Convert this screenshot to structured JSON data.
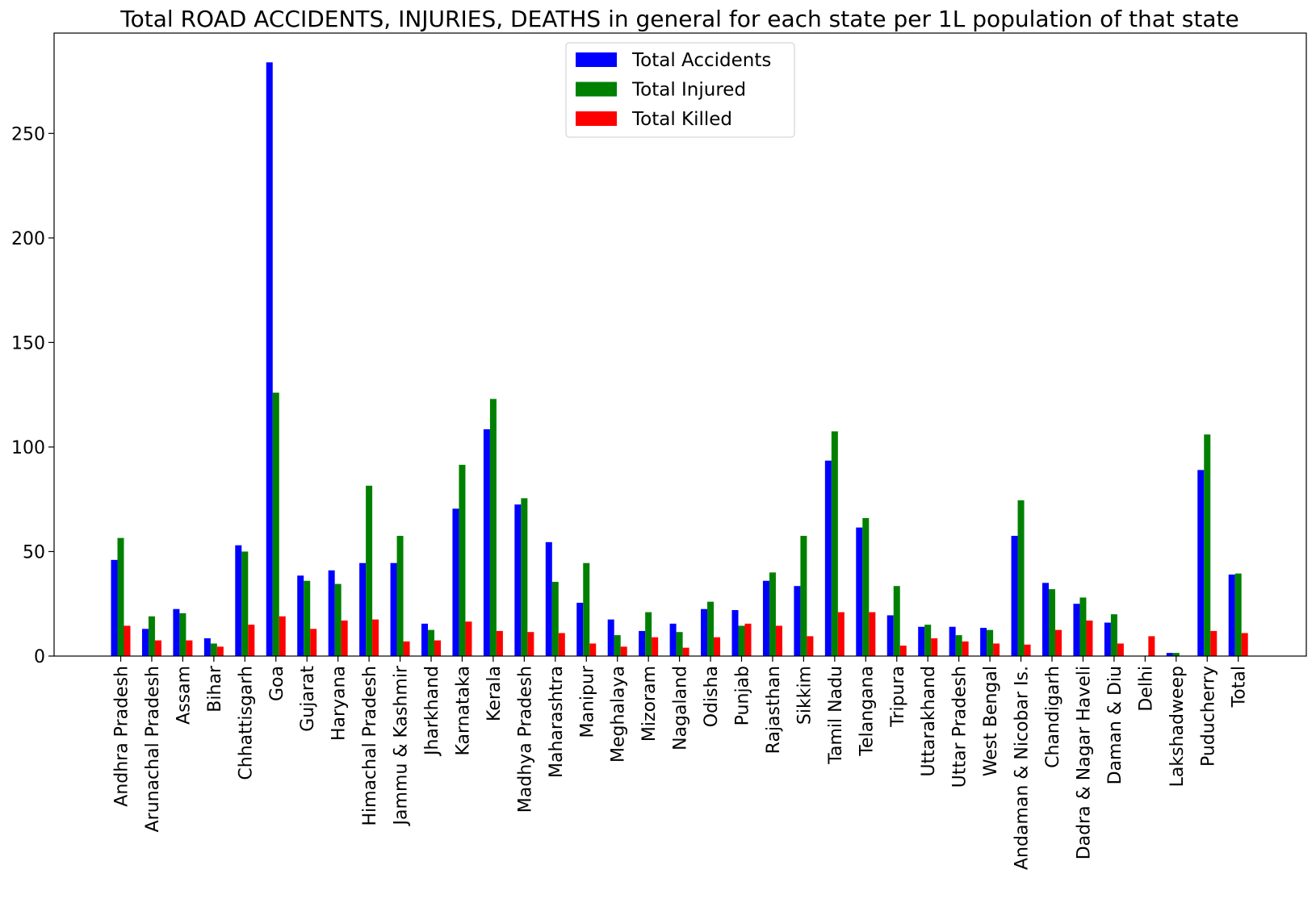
{
  "chart_data": {
    "type": "bar",
    "title": "Total ROAD ACCIDENTS, INJURIES, DEATHS in general for each state per 1L population of that state",
    "xlabel": "",
    "ylabel": "",
    "ylim": [
      0,
      298
    ],
    "yticks": [
      0,
      50,
      100,
      150,
      200,
      250
    ],
    "grid": false,
    "legend": "top-center",
    "categories": [
      "Andhra Pradesh",
      "Arunachal Pradesh",
      "Assam",
      "Bihar",
      "Chhattisgarh",
      "Goa",
      "Gujarat",
      "Haryana",
      "Himachal Pradesh",
      "Jammu & Kashmir",
      "Jharkhand",
      "Karnataka",
      "Kerala",
      "Madhya Pradesh",
      "Maharashtra",
      "Manipur",
      "Meghalaya",
      "Mizoram",
      "Nagaland",
      "Odisha",
      "Punjab",
      "Rajasthan",
      "Sikkim",
      "Tamil Nadu",
      "Telangana",
      "Tripura",
      "Uttarakhand",
      "Uttar Pradesh",
      "West Bengal",
      "Andaman & Nicobar Is.",
      "Chandigarh",
      "Dadra & Nagar Haveli",
      "Daman & Diu",
      "Delhi",
      "Lakshadweep",
      "Puducherry",
      "Total"
    ],
    "series": [
      {
        "name": "Total Accidents",
        "color": "#0000ff",
        "values": [
          46,
          13,
          22.5,
          8.5,
          53,
          284,
          38.5,
          41,
          44.5,
          44.5,
          15.5,
          70.5,
          108.5,
          72.5,
          54.5,
          25.5,
          17.5,
          12,
          15.5,
          22.5,
          22,
          36,
          33.5,
          93.5,
          61.5,
          19.5,
          14,
          14,
          13.5,
          57.5,
          35,
          25,
          16,
          0,
          1.5,
          89,
          39
        ]
      },
      {
        "name": "Total Injured",
        "color": "#008000",
        "values": [
          56.5,
          19,
          20.5,
          6,
          50,
          126,
          36,
          34.5,
          81.5,
          57.5,
          12.5,
          91.5,
          123,
          75.5,
          35.5,
          44.5,
          10,
          21,
          11.5,
          26,
          14.5,
          40,
          57.5,
          107.5,
          66,
          33.5,
          15,
          10,
          12.5,
          74.5,
          32,
          28,
          20,
          0,
          1.5,
          106,
          39.5
        ]
      },
      {
        "name": "Total Killed",
        "color": "#ff0000",
        "values": [
          14.5,
          7.5,
          7.5,
          4.5,
          15,
          19,
          13,
          17,
          17.5,
          7,
          7.5,
          16.5,
          12,
          11.5,
          11,
          6,
          4.5,
          9,
          4,
          9,
          15.5,
          14.5,
          9.5,
          21,
          21,
          5,
          8.5,
          7,
          6,
          5.5,
          12.5,
          17,
          6,
          9.5,
          0,
          12,
          11
        ]
      }
    ]
  }
}
